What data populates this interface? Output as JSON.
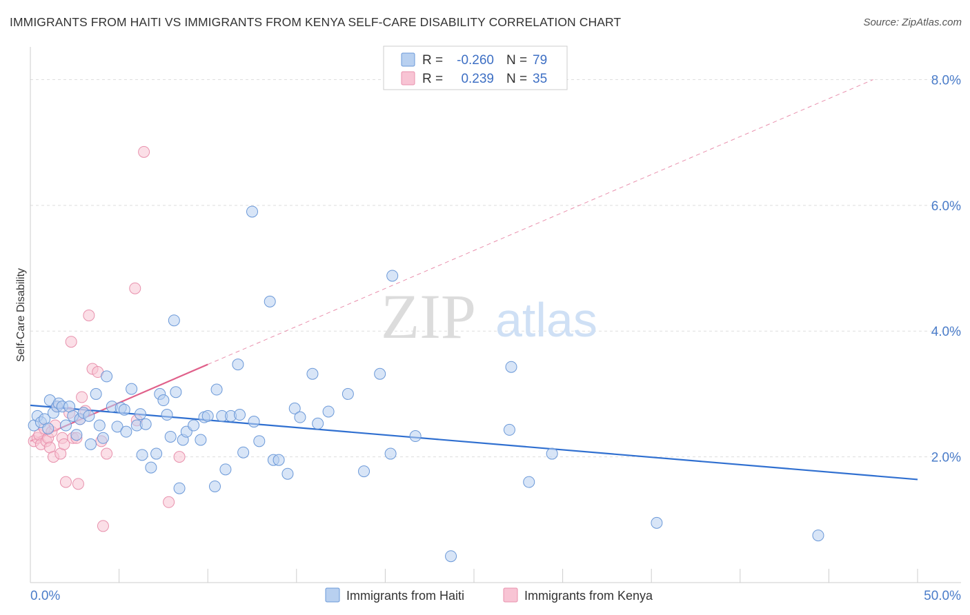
{
  "title": "IMMIGRANTS FROM HAITI VS IMMIGRANTS FROM KENYA SELF-CARE DISABILITY CORRELATION CHART",
  "source": "Source: ZipAtlas.com",
  "watermark": {
    "zip": "ZIP",
    "atlas": "atlas"
  },
  "colors": {
    "haiti_fill": "#b8d0f0",
    "haiti_stroke": "#6a98d8",
    "haiti_line": "#2f6fd0",
    "kenya_fill": "#f8c4d4",
    "kenya_stroke": "#e890ac",
    "kenya_line": "#e0608a",
    "tick": "#4a7cc9",
    "grid": "#dddddd"
  },
  "legend": {
    "haiti": {
      "r_label": "R = ",
      "r_value": "-0.260",
      "n_label": "N = ",
      "n_value": "79"
    },
    "kenya": {
      "r_label": "R = ",
      "r_value": "0.239",
      "n_label": "N = ",
      "n_value": "35"
    }
  },
  "bottom_legend": {
    "haiti": "Immigrants from Haiti",
    "kenya": "Immigrants from Kenya"
  },
  "chart_data": {
    "type": "scatter",
    "title": "IMMIGRANTS FROM HAITI VS IMMIGRANTS FROM KENYA SELF-CARE DISABILITY CORRELATION CHART",
    "xlabel": "",
    "ylabel": "Self-Care Disability",
    "xlim": [
      0,
      50
    ],
    "ylim": [
      0,
      8.4
    ],
    "x_tick_labels": [
      "0.0%",
      "50.0%"
    ],
    "y_ticks": [
      2,
      4,
      6,
      8
    ],
    "y_tick_labels": [
      "2.0%",
      "4.0%",
      "6.0%",
      "8.0%"
    ],
    "grid": true,
    "series": [
      {
        "name": "Immigrants from Haiti",
        "trend": {
          "x": [
            0,
            50
          ],
          "y": [
            2.82,
            1.64
          ],
          "dashed": false
        },
        "points": [
          {
            "x": 0.2,
            "y": 2.5
          },
          {
            "x": 0.4,
            "y": 2.65
          },
          {
            "x": 0.6,
            "y": 2.55
          },
          {
            "x": 0.8,
            "y": 2.6
          },
          {
            "x": 1.0,
            "y": 2.45
          },
          {
            "x": 1.1,
            "y": 2.9
          },
          {
            "x": 1.3,
            "y": 2.7
          },
          {
            "x": 1.5,
            "y": 2.8
          },
          {
            "x": 1.6,
            "y": 2.85
          },
          {
            "x": 1.8,
            "y": 2.8
          },
          {
            "x": 2.0,
            "y": 2.5
          },
          {
            "x": 2.2,
            "y": 2.8
          },
          {
            "x": 2.4,
            "y": 2.65
          },
          {
            "x": 2.6,
            "y": 2.35
          },
          {
            "x": 2.8,
            "y": 2.6
          },
          {
            "x": 3.0,
            "y": 2.7
          },
          {
            "x": 3.3,
            "y": 2.65
          },
          {
            "x": 3.4,
            "y": 2.2
          },
          {
            "x": 3.7,
            "y": 3.0
          },
          {
            "x": 3.9,
            "y": 2.5
          },
          {
            "x": 4.1,
            "y": 2.3
          },
          {
            "x": 4.3,
            "y": 3.28
          },
          {
            "x": 4.6,
            "y": 2.8
          },
          {
            "x": 4.9,
            "y": 2.48
          },
          {
            "x": 5.1,
            "y": 2.78
          },
          {
            "x": 5.3,
            "y": 2.75
          },
          {
            "x": 5.4,
            "y": 2.4
          },
          {
            "x": 5.7,
            "y": 3.08
          },
          {
            "x": 6.0,
            "y": 2.5
          },
          {
            "x": 6.2,
            "y": 2.68
          },
          {
            "x": 6.3,
            "y": 2.03
          },
          {
            "x": 6.5,
            "y": 2.52
          },
          {
            "x": 6.8,
            "y": 1.83
          },
          {
            "x": 7.1,
            "y": 2.05
          },
          {
            "x": 7.3,
            "y": 3.0
          },
          {
            "x": 7.5,
            "y": 2.9
          },
          {
            "x": 7.7,
            "y": 2.67
          },
          {
            "x": 7.9,
            "y": 2.32
          },
          {
            "x": 8.1,
            "y": 4.17
          },
          {
            "x": 8.2,
            "y": 3.03
          },
          {
            "x": 8.4,
            "y": 1.5
          },
          {
            "x": 8.6,
            "y": 2.27
          },
          {
            "x": 8.8,
            "y": 2.4
          },
          {
            "x": 9.2,
            "y": 2.5
          },
          {
            "x": 9.6,
            "y": 2.27
          },
          {
            "x": 9.8,
            "y": 2.63
          },
          {
            "x": 10.0,
            "y": 2.65
          },
          {
            "x": 10.4,
            "y": 1.53
          },
          {
            "x": 10.5,
            "y": 3.07
          },
          {
            "x": 10.8,
            "y": 2.65
          },
          {
            "x": 11.0,
            "y": 1.8
          },
          {
            "x": 11.3,
            "y": 2.65
          },
          {
            "x": 11.7,
            "y": 3.47
          },
          {
            "x": 11.8,
            "y": 2.67
          },
          {
            "x": 12.0,
            "y": 2.07
          },
          {
            "x": 12.5,
            "y": 5.9
          },
          {
            "x": 12.6,
            "y": 2.56
          },
          {
            "x": 12.9,
            "y": 2.25
          },
          {
            "x": 13.5,
            "y": 4.47
          },
          {
            "x": 13.7,
            "y": 1.95
          },
          {
            "x": 14.0,
            "y": 1.95
          },
          {
            "x": 14.5,
            "y": 1.73
          },
          {
            "x": 14.9,
            "y": 2.77
          },
          {
            "x": 15.2,
            "y": 2.63
          },
          {
            "x": 15.9,
            "y": 3.32
          },
          {
            "x": 16.2,
            "y": 2.53
          },
          {
            "x": 16.8,
            "y": 2.72
          },
          {
            "x": 17.9,
            "y": 3.0
          },
          {
            "x": 18.8,
            "y": 1.77
          },
          {
            "x": 19.7,
            "y": 3.32
          },
          {
            "x": 20.3,
            "y": 2.05
          },
          {
            "x": 20.4,
            "y": 4.88
          },
          {
            "x": 21.7,
            "y": 2.33
          },
          {
            "x": 23.7,
            "y": 0.42
          },
          {
            "x": 27.0,
            "y": 2.43
          },
          {
            "x": 27.1,
            "y": 3.43
          },
          {
            "x": 28.1,
            "y": 1.6
          },
          {
            "x": 29.4,
            "y": 2.05
          },
          {
            "x": 35.3,
            "y": 0.95
          },
          {
            "x": 44.4,
            "y": 0.75
          }
        ]
      },
      {
        "name": "Immigrants from Kenya",
        "trend": {
          "x": [
            0,
            10
          ],
          "y": [
            2.25,
            3.47
          ],
          "dashed": false,
          "extension": {
            "x": [
              10,
              47.5
            ],
            "y": [
              3.47,
              8.0
            ],
            "dashed": true
          }
        },
        "points": [
          {
            "x": 0.2,
            "y": 2.25
          },
          {
            "x": 0.4,
            "y": 2.3
          },
          {
            "x": 0.5,
            "y": 2.35
          },
          {
            "x": 0.6,
            "y": 2.2
          },
          {
            "x": 0.8,
            "y": 2.45
          },
          {
            "x": 0.9,
            "y": 2.25
          },
          {
            "x": 1.0,
            "y": 2.3
          },
          {
            "x": 1.1,
            "y": 2.15
          },
          {
            "x": 1.2,
            "y": 2.4
          },
          {
            "x": 1.3,
            "y": 2.0
          },
          {
            "x": 1.4,
            "y": 2.5
          },
          {
            "x": 1.5,
            "y": 2.8
          },
          {
            "x": 1.7,
            "y": 2.05
          },
          {
            "x": 1.8,
            "y": 2.3
          },
          {
            "x": 1.9,
            "y": 2.2
          },
          {
            "x": 2.0,
            "y": 1.6
          },
          {
            "x": 2.2,
            "y": 2.7
          },
          {
            "x": 2.3,
            "y": 3.83
          },
          {
            "x": 2.4,
            "y": 2.3
          },
          {
            "x": 2.6,
            "y": 2.3
          },
          {
            "x": 2.7,
            "y": 1.57
          },
          {
            "x": 2.8,
            "y": 2.6
          },
          {
            "x": 2.9,
            "y": 2.95
          },
          {
            "x": 3.1,
            "y": 2.73
          },
          {
            "x": 3.3,
            "y": 4.25
          },
          {
            "x": 3.5,
            "y": 3.4
          },
          {
            "x": 3.8,
            "y": 3.35
          },
          {
            "x": 4.0,
            "y": 2.25
          },
          {
            "x": 4.1,
            "y": 0.9
          },
          {
            "x": 4.3,
            "y": 2.05
          },
          {
            "x": 5.9,
            "y": 4.68
          },
          {
            "x": 6.0,
            "y": 2.58
          },
          {
            "x": 6.4,
            "y": 6.85
          },
          {
            "x": 7.8,
            "y": 1.28
          },
          {
            "x": 8.4,
            "y": 2.0
          }
        ]
      }
    ]
  }
}
